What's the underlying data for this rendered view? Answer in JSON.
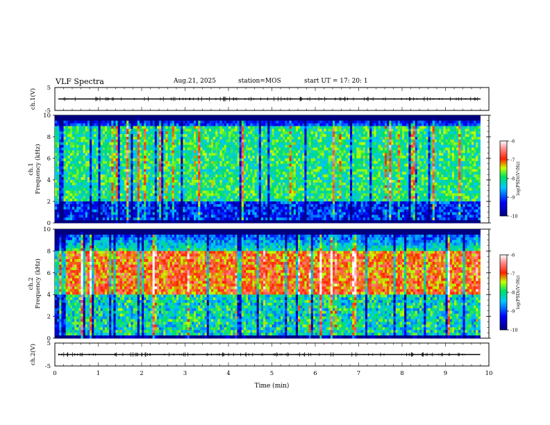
{
  "header": {
    "title": "VLF Spectra",
    "date": "Aug.21, 2025",
    "station": "station=MOS",
    "start_ut": "start  UT =   17: 20: 1"
  },
  "chart_data": [
    {
      "type": "line",
      "panel": "ch1-waveform",
      "ylabel": "ch.1(V)",
      "ylim": [
        -5,
        5
      ],
      "y_ticks": [
        "5",
        "-5"
      ],
      "xlim": [
        0,
        10
      ],
      "baseline_v": 0
    },
    {
      "type": "heatmap",
      "panel": "ch1-spectrogram",
      "ylabel": "ch.1\nFrequency (kHz)",
      "ylabel_lines": [
        "ch.1",
        "Frequency (kHz)"
      ],
      "ylim": [
        0,
        10
      ],
      "y_ticks": [
        "0",
        "2",
        "4",
        "6",
        "8",
        "10"
      ],
      "xlim": [
        0,
        9.8
      ],
      "colorbar": {
        "range": [
          -10,
          -6
        ],
        "ticks": [
          "-6",
          "-7",
          "-8",
          "-9",
          "-10"
        ],
        "label": "log(PSD)(V²/Hz)"
      },
      "dominant_band_khz": [
        2,
        9
      ],
      "typical_log_psd": -8
    },
    {
      "type": "heatmap",
      "panel": "ch2-spectrogram",
      "ylabel": "ch.2\nFrequency (kHz)",
      "ylabel_lines": [
        "ch.2",
        "Frequency (kHz)"
      ],
      "ylim": [
        0,
        10
      ],
      "y_ticks": [
        "0",
        "2",
        "4",
        "6",
        "8",
        "10"
      ],
      "xlim": [
        0,
        9.8
      ],
      "colorbar": {
        "range": [
          -10,
          -6
        ],
        "ticks": [
          "-6",
          "-7",
          "-8",
          "-9",
          "-10"
        ],
        "label": "log(PSD)(V²/Hz)"
      },
      "dominant_band_khz": [
        4,
        8
      ],
      "typical_log_psd": -7
    },
    {
      "type": "line",
      "panel": "ch2-waveform",
      "ylabel": "ch.2(V)",
      "ylim": [
        -5,
        5
      ],
      "y_ticks": [
        "5",
        "-5"
      ],
      "xlim": [
        0,
        10
      ],
      "baseline_v": 0
    }
  ],
  "x_axis": {
    "label": "Time (min)",
    "ticks": [
      "0",
      "1",
      "2",
      "3",
      "4",
      "5",
      "6",
      "7",
      "8",
      "9",
      "10"
    ]
  }
}
